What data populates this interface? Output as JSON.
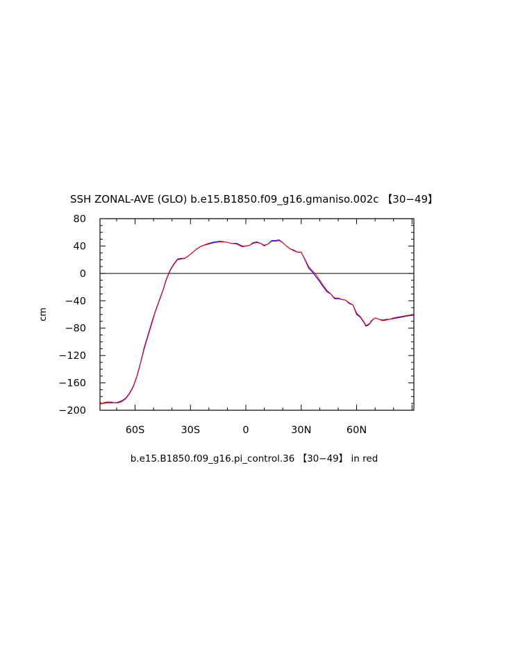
{
  "chart_data": {
    "type": "line",
    "title": "SSH ZONAL-AVE (GLO) b.e15.B1850.f09_g16.gmaniso.002c 【30−49】",
    "subtitle": "b.e15.B1850.f09_g16.pi_control.36 【30−49】 in red",
    "xlabel": "",
    "ylabel": "cm",
    "xlim": [
      -79,
      91
    ],
    "ylim": [
      -200,
      80
    ],
    "x_ticks": [
      -60,
      -30,
      0,
      30,
      60
    ],
    "x_tick_labels": [
      "60S",
      "30S",
      "0",
      "30N",
      "60N"
    ],
    "y_ticks": [
      80,
      40,
      0,
      -40,
      -80,
      -120,
      -160,
      -200
    ],
    "y_tick_labels": [
      "80",
      "40",
      "0",
      "−40",
      "−80",
      "−120",
      "−160",
      "−200"
    ],
    "reference_line": 0,
    "grid": false,
    "legend": "none",
    "series": [
      {
        "color": "#0000ff",
        "x": [
          -79,
          -78,
          -77,
          -75,
          -73,
          -71,
          -69,
          -67,
          -65,
          -63,
          -61,
          -59,
          -57,
          -55,
          -53,
          -51,
          -49,
          -47,
          -45,
          -43,
          -41,
          -39,
          -37,
          -35,
          -33,
          -30,
          -27,
          -24,
          -20,
          -17,
          -14,
          -11,
          -8,
          -5,
          -2,
          0,
          2,
          4,
          6,
          8,
          10,
          12,
          14,
          16,
          18,
          20,
          22,
          24,
          26,
          28,
          30,
          32,
          34,
          36,
          38,
          40,
          42,
          44,
          46,
          48,
          50,
          52,
          54,
          56,
          58,
          60,
          62,
          64,
          65,
          66,
          67,
          68,
          70,
          72,
          74,
          76,
          78,
          80,
          82,
          84,
          86,
          88,
          91
        ],
        "y": [
          -188,
          -191,
          -189,
          -188,
          -188,
          -189,
          -188,
          -186,
          -182,
          -175,
          -165,
          -150,
          -130,
          -108,
          -90,
          -72,
          -55,
          -40,
          -25,
          -8,
          5,
          14,
          21,
          22,
          22,
          28,
          35,
          40,
          44,
          46,
          47,
          46,
          44,
          44,
          40,
          40,
          41,
          45,
          46,
          44,
          41,
          43,
          48,
          48,
          49,
          45,
          40,
          36,
          34,
          31,
          31,
          20,
          8,
          2,
          -5,
          -12,
          -20,
          -27,
          -30,
          -37,
          -37,
          -38,
          -39,
          -44,
          -46,
          -60,
          -64,
          -72,
          -77,
          -76,
          -74,
          -70,
          -65,
          -67,
          -69,
          -68,
          -67,
          -66,
          -65,
          -64,
          -63,
          -62,
          -61
        ]
      },
      {
        "color": "#ff0000",
        "x": [
          -79,
          -78,
          -77,
          -75,
          -73,
          -71,
          -69,
          -67,
          -65,
          -63,
          -61,
          -59,
          -57,
          -55,
          -53,
          -51,
          -49,
          -47,
          -45,
          -43,
          -41,
          -39,
          -37,
          -35,
          -33,
          -30,
          -27,
          -24,
          -20,
          -17,
          -14,
          -11,
          -8,
          -5,
          -2,
          0,
          2,
          4,
          6,
          8,
          10,
          12,
          14,
          16,
          18,
          20,
          22,
          24,
          26,
          28,
          30,
          32,
          34,
          36,
          38,
          40,
          42,
          44,
          46,
          48,
          50,
          52,
          54,
          56,
          58,
          60,
          62,
          64,
          65,
          66,
          67,
          68,
          70,
          72,
          74,
          76,
          78,
          80,
          82,
          84,
          86,
          88,
          91
        ],
        "y": [
          -189,
          -190,
          -190,
          -189,
          -189,
          -189,
          -189,
          -187,
          -183,
          -176,
          -166,
          -151,
          -131,
          -110,
          -92,
          -74,
          -56,
          -41,
          -26,
          -9,
          4,
          13,
          20,
          21,
          22,
          28,
          35,
          40,
          43,
          45,
          46,
          46,
          44,
          43,
          39,
          40,
          41,
          44,
          45,
          44,
          40,
          43,
          47,
          47,
          48,
          45,
          40,
          36,
          33,
          31,
          31,
          21,
          10,
          4,
          -2,
          -10,
          -18,
          -25,
          -30,
          -36,
          -36,
          -38,
          -39,
          -43,
          -46,
          -58,
          -63,
          -71,
          -76,
          -75,
          -73,
          -69,
          -65,
          -67,
          -68,
          -67,
          -67,
          -65,
          -64,
          -63,
          -62,
          -61,
          -60
        ]
      }
    ]
  }
}
